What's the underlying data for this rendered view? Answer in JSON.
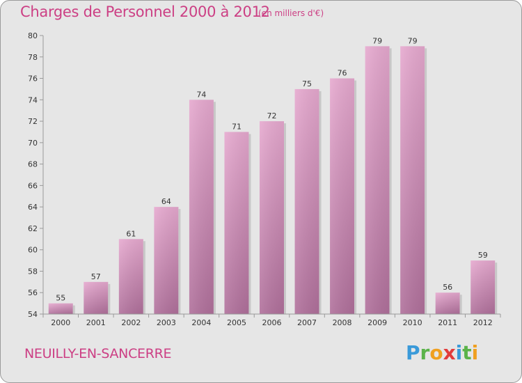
{
  "header": {
    "title": "Charges de Personnel 2000 à 2012",
    "subtitle": "(en milliers d'€)"
  },
  "footer": {
    "town": "NEUILLY-EN-SANCERRE",
    "logo": {
      "text": "Proxiti",
      "letters": [
        {
          "char": "P",
          "color": "#3a9ad9"
        },
        {
          "char": "r",
          "color": "#5bb34a"
        },
        {
          "char": "o",
          "color": "#f0a020"
        },
        {
          "char": "x",
          "color": "#e23b3b"
        },
        {
          "char": "i",
          "color": "#3a9ad9"
        },
        {
          "char": "t",
          "color": "#5bb34a"
        },
        {
          "char": "i",
          "color": "#f0a020"
        }
      ]
    }
  },
  "colors": {
    "title": "#cc3f84",
    "bar_light": "#e4a6cc",
    "bar_dark": "#b5739e",
    "background": "#e6e6e6"
  },
  "chart_data": {
    "type": "bar",
    "title": "Charges de Personnel 2000 à 2012",
    "subtitle": "(en milliers d'€)",
    "categories": [
      "2000",
      "2001",
      "2002",
      "2003",
      "2004",
      "2005",
      "2006",
      "2007",
      "2008",
      "2009",
      "2010",
      "2011",
      "2012"
    ],
    "values": [
      55,
      57,
      61,
      64,
      74,
      71,
      72,
      75,
      76,
      79,
      79,
      56,
      59
    ],
    "ylim": [
      54,
      80
    ],
    "yticks": [
      54,
      56,
      58,
      60,
      62,
      64,
      66,
      68,
      70,
      72,
      74,
      76,
      78,
      80
    ],
    "grid": false,
    "data_labels": true
  }
}
